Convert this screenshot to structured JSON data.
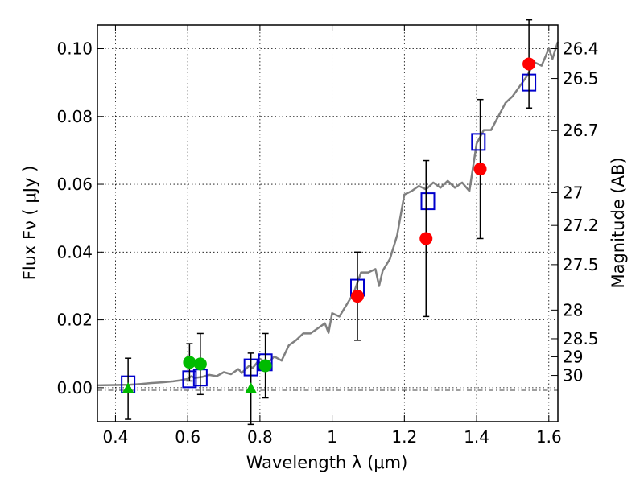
{
  "chart_data": {
    "type": "scatter",
    "xlabel": "Wavelength  λ (μm)",
    "ylabel": "Flux  Fν  ( μJy )",
    "ylabel_right": "Magnitude (AB)",
    "xlim": [
      0.35,
      1.625
    ],
    "ylim": [
      -0.01,
      0.107
    ],
    "grid": true,
    "x_ticks": [
      {
        "v": 0.4,
        "label": "0.4"
      },
      {
        "v": 0.6,
        "label": "0.6"
      },
      {
        "v": 0.8,
        "label": "0.8"
      },
      {
        "v": 1.0,
        "label": "1"
      },
      {
        "v": 1.2,
        "label": "1.2"
      },
      {
        "v": 1.4,
        "label": "1.4"
      },
      {
        "v": 1.6,
        "label": "1.6"
      }
    ],
    "y_ticks": [
      {
        "v": 0.0,
        "label": "0.00"
      },
      {
        "v": 0.02,
        "label": "0.02"
      },
      {
        "v": 0.04,
        "label": "0.04"
      },
      {
        "v": 0.06,
        "label": "0.06"
      },
      {
        "v": 0.08,
        "label": "0.08"
      },
      {
        "v": 0.1,
        "label": "0.10"
      }
    ],
    "mag_ticks": [
      "26.4",
      "26.5",
      "26.7",
      "27",
      "27.2",
      "27.5",
      "28",
      "28.5",
      "29",
      "30"
    ],
    "series": [
      {
        "kind": "line",
        "color": "#808080",
        "points": [
          [
            0.35,
            0.0007
          ],
          [
            0.4,
            0.0008
          ],
          [
            0.44,
            0.0009
          ],
          [
            0.47,
            0.0011
          ],
          [
            0.5,
            0.0014
          ],
          [
            0.53,
            0.0016
          ],
          [
            0.56,
            0.0019
          ],
          [
            0.58,
            0.0022
          ],
          [
            0.6,
            0.0026
          ],
          [
            0.61,
            0.0034
          ],
          [
            0.62,
            0.0029
          ],
          [
            0.64,
            0.0032
          ],
          [
            0.66,
            0.0038
          ],
          [
            0.68,
            0.0034
          ],
          [
            0.7,
            0.0046
          ],
          [
            0.72,
            0.004
          ],
          [
            0.74,
            0.0055
          ],
          [
            0.75,
            0.0044
          ],
          [
            0.77,
            0.0065
          ],
          [
            0.78,
            0.0058
          ],
          [
            0.8,
            0.0085
          ],
          [
            0.82,
            0.0072
          ],
          [
            0.84,
            0.0092
          ],
          [
            0.86,
            0.008
          ],
          [
            0.88,
            0.0125
          ],
          [
            0.9,
            0.014
          ],
          [
            0.92,
            0.016
          ],
          [
            0.94,
            0.016
          ],
          [
            0.96,
            0.0175
          ],
          [
            0.98,
            0.019
          ],
          [
            0.99,
            0.0162
          ],
          [
            1.0,
            0.022
          ],
          [
            1.02,
            0.021
          ],
          [
            1.04,
            0.0245
          ],
          [
            1.06,
            0.028
          ],
          [
            1.08,
            0.034
          ],
          [
            1.1,
            0.034
          ],
          [
            1.12,
            0.035
          ],
          [
            1.13,
            0.03
          ],
          [
            1.14,
            0.0345
          ],
          [
            1.16,
            0.038
          ],
          [
            1.18,
            0.045
          ],
          [
            1.2,
            0.057
          ],
          [
            1.22,
            0.058
          ],
          [
            1.24,
            0.0595
          ],
          [
            1.26,
            0.0585
          ],
          [
            1.28,
            0.0605
          ],
          [
            1.3,
            0.059
          ],
          [
            1.32,
            0.061
          ],
          [
            1.34,
            0.059
          ],
          [
            1.36,
            0.0605
          ],
          [
            1.38,
            0.058
          ],
          [
            1.4,
            0.072
          ],
          [
            1.42,
            0.076
          ],
          [
            1.44,
            0.076
          ],
          [
            1.46,
            0.08
          ],
          [
            1.48,
            0.084
          ],
          [
            1.5,
            0.086
          ],
          [
            1.52,
            0.089
          ],
          [
            1.54,
            0.092
          ],
          [
            1.56,
            0.096
          ],
          [
            1.58,
            0.095
          ],
          [
            1.6,
            0.1
          ],
          [
            1.61,
            0.097
          ],
          [
            1.625,
            0.102
          ]
        ]
      },
      {
        "kind": "points",
        "marker": "square",
        "color": "#0000cc",
        "points": [
          [
            0.435,
            0.001
          ],
          [
            0.605,
            0.0025
          ],
          [
            0.635,
            0.003
          ],
          [
            0.775,
            0.006
          ],
          [
            0.815,
            0.0075
          ],
          [
            1.07,
            0.0295
          ],
          [
            1.265,
            0.055
          ],
          [
            1.405,
            0.0725
          ],
          [
            1.545,
            0.09
          ]
        ]
      },
      {
        "kind": "points",
        "marker": "circle",
        "color": "#ff0000",
        "points": [
          [
            1.07,
            0.027
          ],
          [
            1.26,
            0.044
          ],
          [
            1.41,
            0.0645
          ],
          [
            1.545,
            0.0955
          ]
        ],
        "errors": [
          0.013,
          0.023,
          0.0205,
          0.013
        ]
      },
      {
        "kind": "points",
        "marker": "circle",
        "color": "#00bb00",
        "points": [
          [
            0.605,
            0.0075
          ],
          [
            0.635,
            0.007
          ],
          [
            0.815,
            0.0065
          ]
        ],
        "errors": [
          0.0055,
          0.009,
          0.0095
        ]
      },
      {
        "kind": "points",
        "marker": "triangle",
        "color": "#00bb00",
        "points": [
          [
            0.435,
            -0.0003
          ],
          [
            0.775,
            -0.0003
          ]
        ],
        "errors": [
          0.009,
          0.0105
        ]
      }
    ]
  }
}
